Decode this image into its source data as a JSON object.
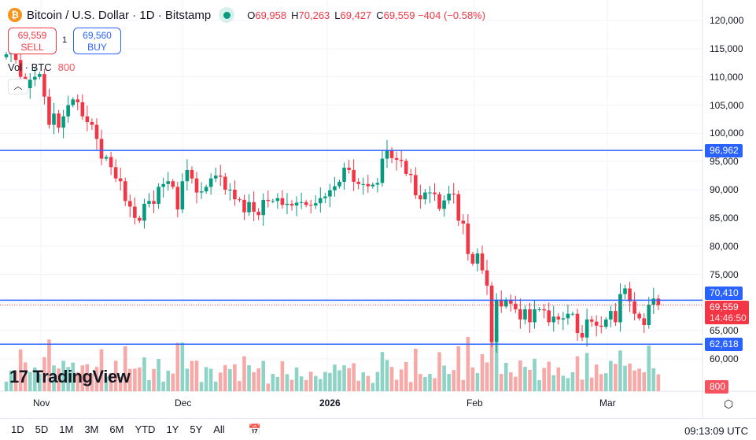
{
  "header": {
    "title": "Bitcoin / U.S. Dollar · 1D · Bitstamp",
    "coin_icon": "bitcoin-icon",
    "ohlc": {
      "o": "69,958",
      "h": "70,263",
      "l": "69,427",
      "c": "69,559",
      "change": "−404 (−0.58%)"
    }
  },
  "trade": {
    "sell_price": "69,559",
    "sell_label": "SELL",
    "qty": "1",
    "buy_price": "69,560",
    "buy_label": "BUY"
  },
  "volume": {
    "label": "Vol · BTC",
    "value": "800"
  },
  "price_axis": [
    "120,000",
    "115,000",
    "110,000",
    "105,000",
    "100,000",
    "95,000",
    "90,000",
    "85,000",
    "80,000",
    "75,000",
    "65,000",
    "60,000"
  ],
  "levels": [
    {
      "label": "96,962",
      "value": 96962
    },
    {
      "label": "70,410",
      "value": 70410
    },
    {
      "label": "62,618",
      "value": 62618
    }
  ],
  "current": {
    "price": "69,559",
    "countdown": "14:46:50",
    "value": 69559
  },
  "vol_tag": "800",
  "time_axis": [
    {
      "label": "Nov",
      "bold": false
    },
    {
      "label": "Dec",
      "bold": false
    },
    {
      "label": "2026",
      "bold": true
    },
    {
      "label": "Feb",
      "bold": false
    },
    {
      "label": "Mar",
      "bold": false
    }
  ],
  "logo": "TradingView",
  "ranges": [
    "1D",
    "5D",
    "1M",
    "3M",
    "6M",
    "YTD",
    "1Y",
    "5Y",
    "All"
  ],
  "clock": "09:13:09 UTC",
  "colors": {
    "up": "#089981",
    "down": "#f23645",
    "level": "#2962ff"
  },
  "chart_data": {
    "type": "candlestick",
    "first_close": 113500,
    "closes": [
      114000,
      114500,
      113000,
      110000,
      108000,
      109500,
      110000,
      110500,
      106500,
      101500,
      103500,
      101000,
      103000,
      105000,
      106000,
      105500,
      103000,
      102000,
      101500,
      99000,
      95500,
      95800,
      94000,
      92000,
      91500,
      88000,
      87000,
      85000,
      84500,
      87500,
      88000,
      87500,
      90500,
      91000,
      91500,
      90500,
      86500,
      91500,
      93500,
      92000,
      89500,
      89700,
      90500,
      92000,
      92500,
      92300,
      90000,
      90000,
      88300,
      88200,
      86000,
      87800,
      86100,
      85500,
      88200,
      88000,
      88000,
      88500,
      87300,
      87500,
      87200,
      87700,
      87800,
      87300,
      87200,
      87600,
      88500,
      88800,
      89900,
      90600,
      91400,
      93900,
      93500,
      91400,
      91000,
      91000,
      90600,
      90900,
      91200,
      95500,
      96900,
      95600,
      95300,
      95100,
      92800,
      92600,
      89000,
      88300,
      89500,
      89500,
      89200,
      86600,
      88100,
      89300,
      89200,
      84500,
      84000,
      78600,
      76900,
      78700,
      75700,
      73000,
      63000,
      70500,
      69300,
      70500,
      69800,
      68800,
      67000,
      68800,
      66500,
      68800,
      68800,
      68600,
      66500,
      67500,
      67000,
      67200,
      68000,
      68000,
      64600,
      63800,
      67000,
      66600,
      65900,
      65700,
      67000,
      68500,
      66500,
      71500,
      72500,
      70200,
      68000,
      67200,
      66000,
      69600,
      70700,
      69559
    ],
    "ylim": [
      57000,
      122000
    ]
  }
}
